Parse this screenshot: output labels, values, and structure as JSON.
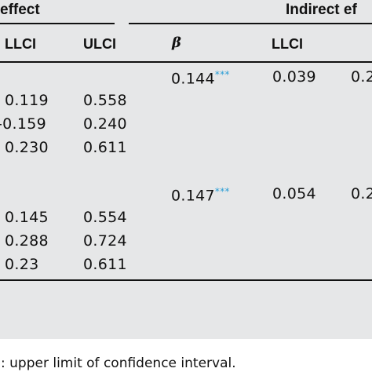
{
  "headers": {
    "direct_effect": "effect",
    "indirect_effect": "Indirect ef"
  },
  "columns": {
    "llci_1": "LLCI",
    "ulci_1": "ULCI",
    "beta": "β",
    "llci_2": "LLCI"
  },
  "groups": [
    {
      "indirect": {
        "beta": "0.144",
        "sig": "***",
        "llci": "0.039",
        "trail": "0.2"
      },
      "rows": [
        {
          "llci": "0.119",
          "ulci": "0.558"
        },
        {
          "llci": "-0.159",
          "ulci": "0.240"
        },
        {
          "llci": "0.230",
          "ulci": "0.611"
        }
      ]
    },
    {
      "indirect": {
        "beta": "0.147",
        "sig": "***",
        "llci": "0.054",
        "trail": "0.2"
      },
      "rows": [
        {
          "llci": "0.145",
          "ulci": "0.554"
        },
        {
          "llci": "0.288",
          "ulci": "0.724"
        },
        {
          "llci": "0.23",
          "ulci": "0.611"
        }
      ]
    }
  ],
  "footnote": "I: upper limit of confidence interval.",
  "colors": {
    "panel": "#e6e7e8",
    "significance": "#2a9ed6",
    "rule": "#111111"
  }
}
